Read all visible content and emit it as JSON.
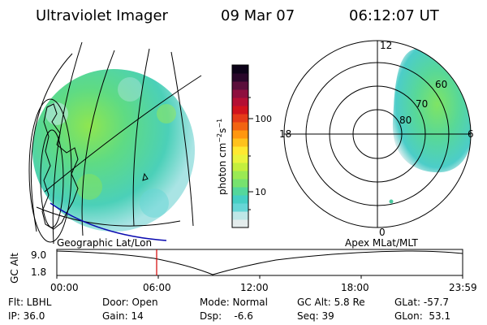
{
  "header": {
    "instrument": "Ultraviolet Imager",
    "date": "09 Mar 07",
    "time": "06:12:07 UT"
  },
  "colorbar": {
    "unit_label": "photon cm",
    "exp1": "−2",
    "mid": "s",
    "exp2": "−1",
    "ticks": [
      "100",
      "10"
    ],
    "colors": [
      "#e4ecec",
      "#bfe7e7",
      "#66d6d6",
      "#45cfc4",
      "#54d79c",
      "#77e26f",
      "#9aea53",
      "#c4ef3d",
      "#eaf43c",
      "#ffe930",
      "#ffc21c",
      "#ff9710",
      "#f26412",
      "#e53b18",
      "#d1131c",
      "#b40f33",
      "#8e0f3e",
      "#5b0e3b",
      "#29062a",
      "#0c0218"
    ]
  },
  "polar": {
    "mlt_labels": [
      "12",
      "18",
      "6",
      "0"
    ],
    "lat_labels": [
      "60",
      "70",
      "80"
    ]
  },
  "timeline": {
    "left_title": "Geographic Lat/Lon",
    "right_title": "Apex MLat/MLT",
    "axis_title": "GC Alt",
    "y_ticks": [
      "9.0",
      "1.8"
    ],
    "x_ticks": [
      "00:00",
      "06:00",
      "12:00",
      "18:00",
      "23:59"
    ]
  },
  "status": {
    "filter": "Flt: LBHL",
    "ip": "IP: 36.0",
    "door": "Door: Open",
    "gain": "Gain: 14",
    "mode": "Mode: Normal",
    "dsp": "Dsp:    -6.6",
    "gc_alt": "GC Alt: 5.8 Re",
    "seq": "Seq: 39",
    "glat": "GLat: -57.7",
    "glon": "GLon:  53.1"
  }
}
